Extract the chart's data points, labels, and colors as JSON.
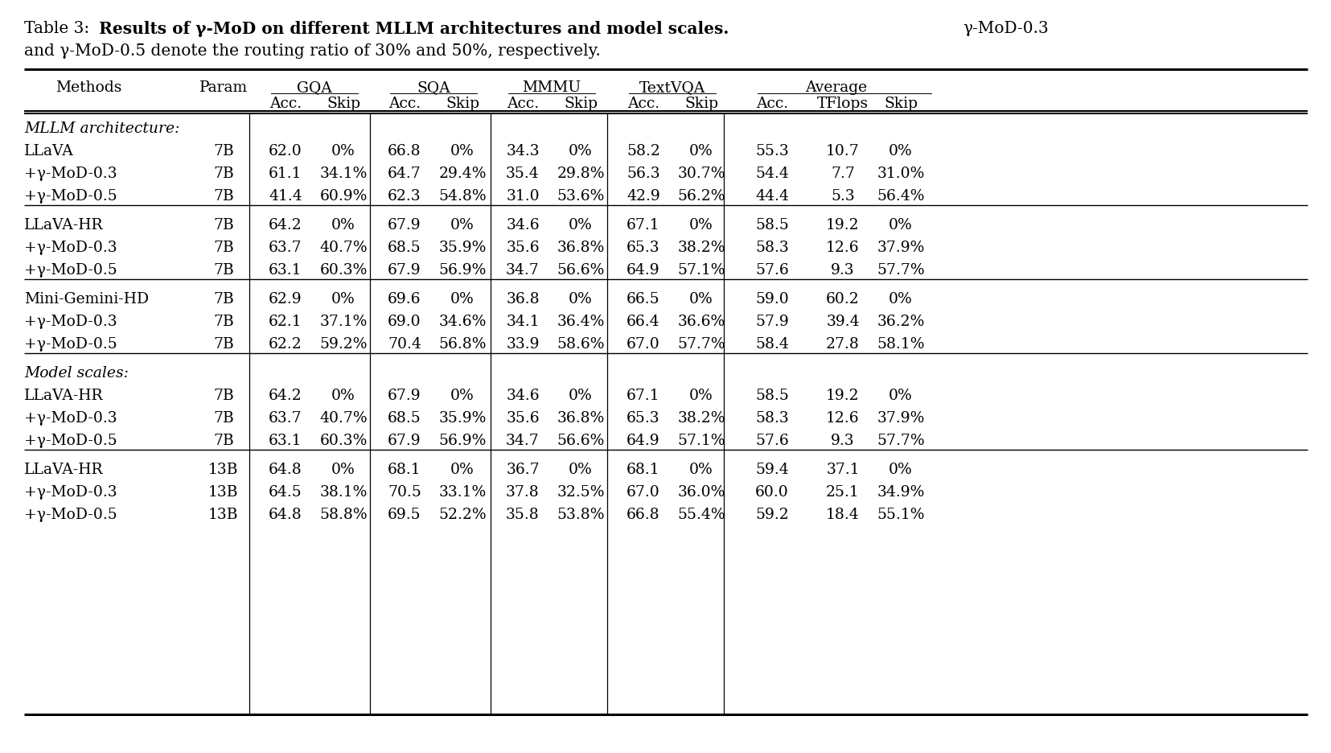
{
  "title_normal": "Table 3:",
  "title_bold": "Results of γ-MoD on different MLLM architectures and model scales.",
  "title_end": "γ-MoD-0.3",
  "subtitle": "and γ-MoD-0.5 denote the routing ratio of 30% and 50%, respectively.",
  "sections": [
    {
      "section_label": "MLLM architecture:",
      "rows": [
        [
          "LLaVA",
          "7B",
          "62.0",
          "0%",
          "66.8",
          "0%",
          "34.3",
          "0%",
          "58.2",
          "0%",
          "55.3",
          "10.7",
          "0%"
        ],
        [
          "+γ-MoD-0.3",
          "7B",
          "61.1",
          "34.1%",
          "64.7",
          "29.4%",
          "35.4",
          "29.8%",
          "56.3",
          "30.7%",
          "54.4",
          "7.7",
          "31.0%"
        ],
        [
          "+γ-MoD-0.5",
          "7B",
          "41.4",
          "60.9%",
          "62.3",
          "54.8%",
          "31.0",
          "53.6%",
          "42.9",
          "56.2%",
          "44.4",
          "5.3",
          "56.4%"
        ]
      ]
    },
    {
      "section_label": null,
      "rows": [
        [
          "LLaVA-HR",
          "7B",
          "64.2",
          "0%",
          "67.9",
          "0%",
          "34.6",
          "0%",
          "67.1",
          "0%",
          "58.5",
          "19.2",
          "0%"
        ],
        [
          "+γ-MoD-0.3",
          "7B",
          "63.7",
          "40.7%",
          "68.5",
          "35.9%",
          "35.6",
          "36.8%",
          "65.3",
          "38.2%",
          "58.3",
          "12.6",
          "37.9%"
        ],
        [
          "+γ-MoD-0.5",
          "7B",
          "63.1",
          "60.3%",
          "67.9",
          "56.9%",
          "34.7",
          "56.6%",
          "64.9",
          "57.1%",
          "57.6",
          "9.3",
          "57.7%"
        ]
      ]
    },
    {
      "section_label": null,
      "rows": [
        [
          "Mini-Gemini-HD",
          "7B",
          "62.9",
          "0%",
          "69.6",
          "0%",
          "36.8",
          "0%",
          "66.5",
          "0%",
          "59.0",
          "60.2",
          "0%"
        ],
        [
          "+γ-MoD-0.3",
          "7B",
          "62.1",
          "37.1%",
          "69.0",
          "34.6%",
          "34.1",
          "36.4%",
          "66.4",
          "36.6%",
          "57.9",
          "39.4",
          "36.2%"
        ],
        [
          "+γ-MoD-0.5",
          "7B",
          "62.2",
          "59.2%",
          "70.4",
          "56.8%",
          "33.9",
          "58.6%",
          "67.0",
          "57.7%",
          "58.4",
          "27.8",
          "58.1%"
        ]
      ]
    },
    {
      "section_label": "Model scales:",
      "rows": [
        [
          "LLaVA-HR",
          "7B",
          "64.2",
          "0%",
          "67.9",
          "0%",
          "34.6",
          "0%",
          "67.1",
          "0%",
          "58.5",
          "19.2",
          "0%"
        ],
        [
          "+γ-MoD-0.3",
          "7B",
          "63.7",
          "40.7%",
          "68.5",
          "35.9%",
          "35.6",
          "36.8%",
          "65.3",
          "38.2%",
          "58.3",
          "12.6",
          "37.9%"
        ],
        [
          "+γ-MoD-0.5",
          "7B",
          "63.1",
          "60.3%",
          "67.9",
          "56.9%",
          "34.7",
          "56.6%",
          "64.9",
          "57.1%",
          "57.6",
          "9.3",
          "57.7%"
        ]
      ]
    },
    {
      "section_label": null,
      "rows": [
        [
          "LLaVA-HR",
          "13B",
          "64.8",
          "0%",
          "68.1",
          "0%",
          "36.7",
          "0%",
          "68.1",
          "0%",
          "59.4",
          "37.1",
          "0%"
        ],
        [
          "+γ-MoD-0.3",
          "13B",
          "64.5",
          "38.1%",
          "70.5",
          "33.1%",
          "37.8",
          "32.5%",
          "67.0",
          "36.0%",
          "60.0",
          "25.1",
          "34.9%"
        ],
        [
          "+γ-MoD-0.5",
          "13B",
          "64.8",
          "58.8%",
          "69.5",
          "52.2%",
          "35.8",
          "53.8%",
          "66.8",
          "55.4%",
          "59.2",
          "18.4",
          "55.1%"
        ]
      ]
    }
  ],
  "bg": "#ffffff",
  "fg": "#000000"
}
